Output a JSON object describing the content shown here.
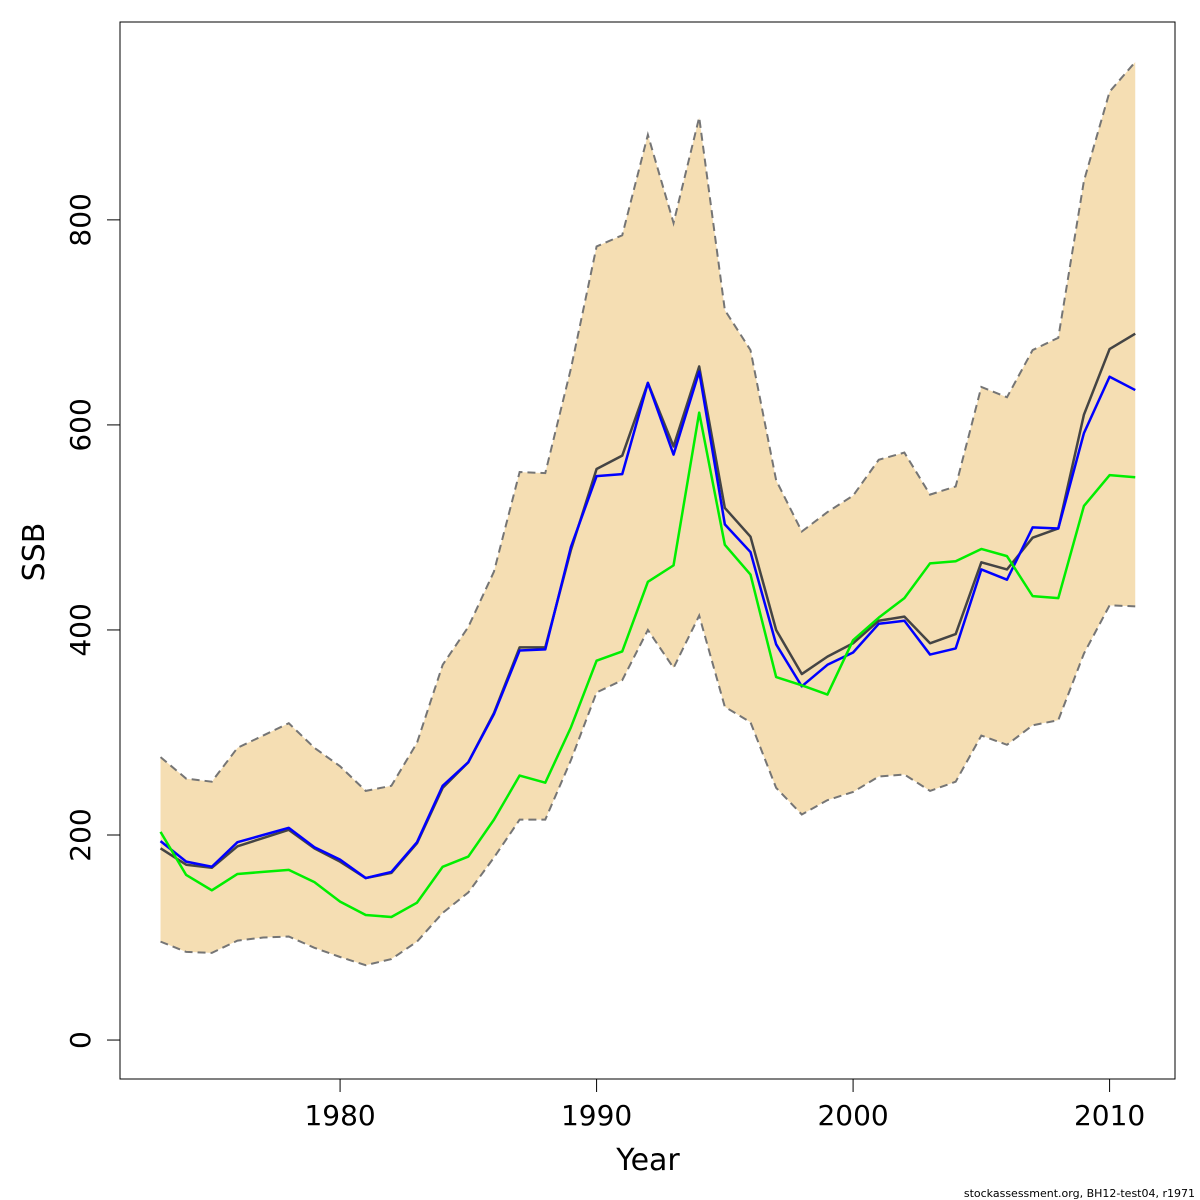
{
  "chart_data": {
    "type": "line",
    "x_label": "Year",
    "y_label": "SSB",
    "caption": "stockassessment.org, BH12-test04, r1971",
    "x": [
      1973,
      1974,
      1975,
      1976,
      1977,
      1978,
      1979,
      1980,
      1981,
      1982,
      1983,
      1984,
      1985,
      1986,
      1987,
      1988,
      1989,
      1990,
      1991,
      1992,
      1993,
      1994,
      1995,
      1996,
      1997,
      1998,
      1999,
      2000,
      2001,
      2002,
      2003,
      2004,
      2005,
      2006,
      2007,
      2008,
      2009,
      2010,
      2011
    ],
    "xlim": [
      1971.42,
      2012.55
    ],
    "xticks": [
      1980,
      1990,
      2000,
      2010
    ],
    "ylim": [
      -38,
      993
    ],
    "yticks": [
      0,
      200,
      400,
      600,
      800
    ],
    "band": {
      "color": "#f5deb3",
      "edge_color": "#757575",
      "upper": [
        276,
        255,
        252,
        285,
        297,
        309,
        285,
        267,
        243,
        248,
        290,
        366,
        403,
        457,
        554,
        553,
        655,
        774,
        785,
        883,
        797,
        900,
        712,
        673,
        546,
        496,
        515,
        531,
        566,
        573,
        532,
        540,
        637,
        627,
        673,
        685,
        838,
        925,
        954
      ],
      "lower": [
        96,
        86,
        85,
        97,
        100,
        101,
        90,
        81,
        73,
        79,
        96,
        124,
        144,
        178,
        215,
        215,
        273,
        339,
        351,
        400,
        363,
        414,
        325,
        310,
        246,
        220,
        234,
        242,
        257,
        259,
        243,
        252,
        297,
        288,
        307,
        312,
        377,
        424,
        423
      ]
    },
    "series": [
      {
        "color": "#444444",
        "values": [
          187,
          171,
          168,
          189,
          197,
          205,
          187,
          174,
          158,
          163,
          192,
          246,
          271,
          319,
          383,
          383,
          478,
          557,
          570,
          641,
          579,
          657,
          519,
          491,
          400,
          357,
          374,
          387,
          409,
          413,
          387,
          396,
          466,
          459,
          490,
          499,
          610,
          674,
          689
        ]
      },
      {
        "color": "#0000ff",
        "values": [
          194,
          174,
          169,
          193,
          200,
          207,
          188,
          176,
          158,
          164,
          193,
          248,
          271,
          318,
          380,
          381,
          481,
          550,
          552,
          641,
          571,
          652,
          503,
          476,
          386,
          345,
          366,
          378,
          406,
          409,
          376,
          382,
          459,
          449,
          500,
          499,
          592,
          647,
          634
        ]
      },
      {
        "color": "#00ee00",
        "values": [
          203,
          161,
          146,
          162,
          164,
          166,
          154,
          135,
          122,
          120,
          134,
          169,
          179,
          215,
          258,
          251,
          305,
          370,
          379,
          447,
          463,
          612,
          483,
          454,
          354,
          346,
          337,
          390,
          412,
          431,
          465,
          467,
          479,
          472,
          433,
          431,
          521,
          551,
          549
        ]
      }
    ]
  }
}
